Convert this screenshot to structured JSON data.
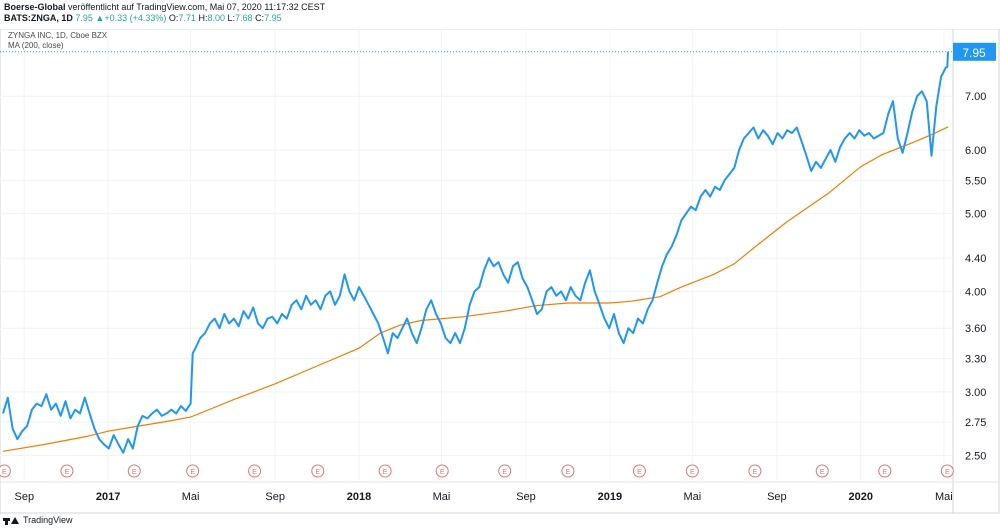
{
  "header": {
    "publisher": "Boerse-Global",
    "published_text": "veröffentlicht auf TradingView.com, Mai 07, 2020 11:17:32 CEST",
    "symbol_line": "BATS:ZNGA, 1D",
    "last": "7.95",
    "change_arrow": "▲",
    "change": "+0.33 (+4.33%)",
    "open_label": "O:",
    "open": "7.71",
    "high_label": "H:",
    "high": "8.00",
    "low_label": "L:",
    "low": "7.68",
    "close_label": "C:",
    "close": "7.95"
  },
  "legend": {
    "title": "ZYNGA INC, 1D, Cboe BZX",
    "indicator": "MA (200, close)"
  },
  "footer": {
    "brand": "TradingView"
  },
  "colors": {
    "price_line": "#2196f3",
    "ma_line": "#f57c00",
    "earnings_marker": "#e57373",
    "price_tag": "#2196f3",
    "grid": "#f0f3fa"
  },
  "chart_data": {
    "type": "line",
    "y_scale": "log",
    "ylim": [
      2.33,
      8.2
    ],
    "y_ticks": [
      "7.95",
      "7.00",
      "6.00",
      "5.50",
      "5.00",
      "4.40",
      "4.00",
      "3.60",
      "3.30",
      "3.00",
      "2.75",
      "2.50"
    ],
    "x_ticks": [
      "Sep",
      "2017",
      "Mai",
      "Sep",
      "2018",
      "Mai",
      "Sep",
      "2019",
      "Mai",
      "Sep",
      "2020",
      "Mai"
    ],
    "xlim": [
      "2016-08-01",
      "2020-05-07"
    ],
    "last_value_label": "7.95",
    "earnings_marker_label": "E",
    "earnings_dates": [
      "2016-08-03",
      "2016-11-02",
      "2017-02-08",
      "2017-05-04",
      "2017-08-02",
      "2017-11-02",
      "2018-02-08",
      "2018-05-02",
      "2018-08-01",
      "2018-11-01",
      "2019-02-13",
      "2019-05-01",
      "2019-07-31",
      "2019-11-06",
      "2020-02-05",
      "2020-05-06"
    ],
    "series": [
      {
        "name": "ZYNGA INC",
        "points": [
          [
            "2016-08-01",
            2.82
          ],
          [
            "2016-08-08",
            2.95
          ],
          [
            "2016-08-15",
            2.7
          ],
          [
            "2016-08-22",
            2.62
          ],
          [
            "2016-08-29",
            2.68
          ],
          [
            "2016-09-05",
            2.72
          ],
          [
            "2016-09-12",
            2.85
          ],
          [
            "2016-09-19",
            2.9
          ],
          [
            "2016-09-26",
            2.88
          ],
          [
            "2016-10-03",
            2.98
          ],
          [
            "2016-10-10",
            2.85
          ],
          [
            "2016-10-17",
            2.9
          ],
          [
            "2016-10-24",
            2.8
          ],
          [
            "2016-10-31",
            2.92
          ],
          [
            "2016-11-07",
            2.78
          ],
          [
            "2016-11-14",
            2.85
          ],
          [
            "2016-11-21",
            2.82
          ],
          [
            "2016-11-28",
            2.95
          ],
          [
            "2016-12-05",
            2.82
          ],
          [
            "2016-12-12",
            2.7
          ],
          [
            "2016-12-19",
            2.62
          ],
          [
            "2016-12-26",
            2.58
          ],
          [
            "2017-01-02",
            2.55
          ],
          [
            "2017-01-09",
            2.65
          ],
          [
            "2017-01-16",
            2.58
          ],
          [
            "2017-01-23",
            2.52
          ],
          [
            "2017-01-30",
            2.62
          ],
          [
            "2017-02-06",
            2.55
          ],
          [
            "2017-02-13",
            2.72
          ],
          [
            "2017-02-20",
            2.8
          ],
          [
            "2017-02-27",
            2.78
          ],
          [
            "2017-03-06",
            2.82
          ],
          [
            "2017-03-13",
            2.85
          ],
          [
            "2017-03-20",
            2.8
          ],
          [
            "2017-03-27",
            2.82
          ],
          [
            "2017-04-03",
            2.85
          ],
          [
            "2017-04-10",
            2.82
          ],
          [
            "2017-04-17",
            2.88
          ],
          [
            "2017-04-24",
            2.84
          ],
          [
            "2017-05-01",
            2.9
          ],
          [
            "2017-05-04",
            3.35
          ],
          [
            "2017-05-08",
            3.4
          ],
          [
            "2017-05-15",
            3.5
          ],
          [
            "2017-05-22",
            3.55
          ],
          [
            "2017-05-29",
            3.65
          ],
          [
            "2017-06-05",
            3.7
          ],
          [
            "2017-06-12",
            3.6
          ],
          [
            "2017-06-19",
            3.75
          ],
          [
            "2017-06-26",
            3.65
          ],
          [
            "2017-07-03",
            3.7
          ],
          [
            "2017-07-10",
            3.62
          ],
          [
            "2017-07-17",
            3.78
          ],
          [
            "2017-07-24",
            3.7
          ],
          [
            "2017-07-31",
            3.82
          ],
          [
            "2017-08-07",
            3.65
          ],
          [
            "2017-08-14",
            3.6
          ],
          [
            "2017-08-21",
            3.7
          ],
          [
            "2017-08-28",
            3.72
          ],
          [
            "2017-09-04",
            3.65
          ],
          [
            "2017-09-11",
            3.75
          ],
          [
            "2017-09-18",
            3.7
          ],
          [
            "2017-09-25",
            3.85
          ],
          [
            "2017-10-02",
            3.9
          ],
          [
            "2017-10-09",
            3.8
          ],
          [
            "2017-10-16",
            3.95
          ],
          [
            "2017-10-23",
            3.85
          ],
          [
            "2017-10-30",
            3.9
          ],
          [
            "2017-11-06",
            3.8
          ],
          [
            "2017-11-13",
            3.95
          ],
          [
            "2017-11-20",
            4.0
          ],
          [
            "2017-11-27",
            3.85
          ],
          [
            "2017-12-04",
            3.95
          ],
          [
            "2017-12-11",
            4.2
          ],
          [
            "2017-12-18",
            4.0
          ],
          [
            "2017-12-25",
            3.9
          ],
          [
            "2018-01-01",
            4.05
          ],
          [
            "2018-01-08",
            3.95
          ],
          [
            "2018-01-15",
            3.85
          ],
          [
            "2018-01-22",
            3.75
          ],
          [
            "2018-01-29",
            3.65
          ],
          [
            "2018-02-05",
            3.5
          ],
          [
            "2018-02-12",
            3.35
          ],
          [
            "2018-02-19",
            3.55
          ],
          [
            "2018-02-26",
            3.5
          ],
          [
            "2018-03-05",
            3.6
          ],
          [
            "2018-03-12",
            3.7
          ],
          [
            "2018-03-19",
            3.55
          ],
          [
            "2018-03-26",
            3.45
          ],
          [
            "2018-04-02",
            3.6
          ],
          [
            "2018-04-09",
            3.8
          ],
          [
            "2018-04-16",
            3.9
          ],
          [
            "2018-04-23",
            3.75
          ],
          [
            "2018-04-30",
            3.65
          ],
          [
            "2018-05-07",
            3.5
          ],
          [
            "2018-05-14",
            3.45
          ],
          [
            "2018-05-21",
            3.55
          ],
          [
            "2018-05-28",
            3.45
          ],
          [
            "2018-06-04",
            3.6
          ],
          [
            "2018-06-11",
            3.85
          ],
          [
            "2018-06-18",
            4.0
          ],
          [
            "2018-06-25",
            4.05
          ],
          [
            "2018-07-02",
            4.25
          ],
          [
            "2018-07-09",
            4.4
          ],
          [
            "2018-07-16",
            4.3
          ],
          [
            "2018-07-23",
            4.35
          ],
          [
            "2018-07-30",
            4.2
          ],
          [
            "2018-08-06",
            4.1
          ],
          [
            "2018-08-13",
            4.3
          ],
          [
            "2018-08-20",
            4.35
          ],
          [
            "2018-08-27",
            4.15
          ],
          [
            "2018-09-03",
            4.05
          ],
          [
            "2018-09-10",
            3.9
          ],
          [
            "2018-09-17",
            3.75
          ],
          [
            "2018-09-24",
            3.8
          ],
          [
            "2018-10-01",
            4.0
          ],
          [
            "2018-10-08",
            4.05
          ],
          [
            "2018-10-15",
            3.95
          ],
          [
            "2018-10-22",
            4.0
          ],
          [
            "2018-10-29",
            3.9
          ],
          [
            "2018-11-05",
            4.05
          ],
          [
            "2018-11-12",
            3.95
          ],
          [
            "2018-11-19",
            3.9
          ],
          [
            "2018-11-26",
            4.1
          ],
          [
            "2018-12-03",
            4.25
          ],
          [
            "2018-12-10",
            4.0
          ],
          [
            "2018-12-17",
            3.85
          ],
          [
            "2018-12-24",
            3.7
          ],
          [
            "2018-12-31",
            3.6
          ],
          [
            "2019-01-07",
            3.75
          ],
          [
            "2019-01-14",
            3.55
          ],
          [
            "2019-01-21",
            3.45
          ],
          [
            "2019-01-28",
            3.6
          ],
          [
            "2019-02-04",
            3.55
          ],
          [
            "2019-02-11",
            3.7
          ],
          [
            "2019-02-18",
            3.65
          ],
          [
            "2019-02-25",
            3.8
          ],
          [
            "2019-03-04",
            3.9
          ],
          [
            "2019-03-11",
            4.1
          ],
          [
            "2019-03-18",
            4.3
          ],
          [
            "2019-03-25",
            4.45
          ],
          [
            "2019-04-01",
            4.55
          ],
          [
            "2019-04-08",
            4.7
          ],
          [
            "2019-04-15",
            4.9
          ],
          [
            "2019-04-22",
            5.0
          ],
          [
            "2019-04-29",
            5.1
          ],
          [
            "2019-05-06",
            5.05
          ],
          [
            "2019-05-13",
            5.25
          ],
          [
            "2019-05-20",
            5.35
          ],
          [
            "2019-05-27",
            5.25
          ],
          [
            "2019-06-03",
            5.4
          ],
          [
            "2019-06-10",
            5.35
          ],
          [
            "2019-06-17",
            5.5
          ],
          [
            "2019-06-24",
            5.6
          ],
          [
            "2019-07-01",
            5.7
          ],
          [
            "2019-07-08",
            6.0
          ],
          [
            "2019-07-15",
            6.2
          ],
          [
            "2019-07-22",
            6.3
          ],
          [
            "2019-07-29",
            6.4
          ],
          [
            "2019-08-05",
            6.2
          ],
          [
            "2019-08-12",
            6.35
          ],
          [
            "2019-08-19",
            6.25
          ],
          [
            "2019-08-26",
            6.1
          ],
          [
            "2019-09-02",
            6.3
          ],
          [
            "2019-09-09",
            6.2
          ],
          [
            "2019-09-16",
            6.35
          ],
          [
            "2019-09-23",
            6.3
          ],
          [
            "2019-09-30",
            6.4
          ],
          [
            "2019-10-07",
            6.15
          ],
          [
            "2019-10-14",
            5.9
          ],
          [
            "2019-10-21",
            5.65
          ],
          [
            "2019-10-28",
            5.8
          ],
          [
            "2019-11-04",
            5.7
          ],
          [
            "2019-11-11",
            5.85
          ],
          [
            "2019-11-18",
            6.0
          ],
          [
            "2019-11-25",
            5.8
          ],
          [
            "2019-12-02",
            6.05
          ],
          [
            "2019-12-09",
            6.2
          ],
          [
            "2019-12-16",
            6.3
          ],
          [
            "2019-12-23",
            6.2
          ],
          [
            "2019-12-30",
            6.35
          ],
          [
            "2020-01-06",
            6.25
          ],
          [
            "2020-01-13",
            6.3
          ],
          [
            "2020-01-20",
            6.2
          ],
          [
            "2020-01-27",
            6.25
          ],
          [
            "2020-02-03",
            6.3
          ],
          [
            "2020-02-10",
            6.65
          ],
          [
            "2020-02-17",
            6.9
          ],
          [
            "2020-02-24",
            6.2
          ],
          [
            "2020-03-02",
            5.95
          ],
          [
            "2020-03-09",
            6.3
          ],
          [
            "2020-03-16",
            6.7
          ],
          [
            "2020-03-23",
            7.0
          ],
          [
            "2020-03-30",
            7.1
          ],
          [
            "2020-04-06",
            6.9
          ],
          [
            "2020-04-13",
            5.9
          ],
          [
            "2020-04-20",
            6.8
          ],
          [
            "2020-04-27",
            7.4
          ],
          [
            "2020-05-04",
            7.6
          ],
          [
            "2020-05-06",
            7.62
          ],
          [
            "2020-05-07",
            7.95
          ]
        ]
      },
      {
        "name": "MA (200, close)",
        "points": [
          [
            "2016-08-01",
            2.53
          ],
          [
            "2016-10-01",
            2.58
          ],
          [
            "2016-12-01",
            2.64
          ],
          [
            "2017-01-01",
            2.68
          ],
          [
            "2017-02-15",
            2.72
          ],
          [
            "2017-04-01",
            2.76
          ],
          [
            "2017-05-01",
            2.79
          ],
          [
            "2017-06-01",
            2.86
          ],
          [
            "2017-07-01",
            2.93
          ],
          [
            "2017-09-01",
            3.07
          ],
          [
            "2017-11-01",
            3.23
          ],
          [
            "2018-01-01",
            3.4
          ],
          [
            "2018-02-01",
            3.55
          ],
          [
            "2018-03-01",
            3.63
          ],
          [
            "2018-04-01",
            3.68
          ],
          [
            "2018-06-01",
            3.72
          ],
          [
            "2018-08-01",
            3.78
          ],
          [
            "2018-09-15",
            3.84
          ],
          [
            "2018-11-01",
            3.87
          ],
          [
            "2019-01-01",
            3.87
          ],
          [
            "2019-02-01",
            3.89
          ],
          [
            "2019-03-15",
            3.94
          ],
          [
            "2019-04-15",
            4.05
          ],
          [
            "2019-06-01",
            4.2
          ],
          [
            "2019-07-01",
            4.33
          ],
          [
            "2019-08-01",
            4.55
          ],
          [
            "2019-09-15",
            4.88
          ],
          [
            "2019-11-15",
            5.3
          ],
          [
            "2020-01-01",
            5.72
          ],
          [
            "2020-02-01",
            5.92
          ],
          [
            "2020-03-15",
            6.12
          ],
          [
            "2020-04-15",
            6.28
          ],
          [
            "2020-05-07",
            6.41
          ]
        ]
      }
    ]
  }
}
